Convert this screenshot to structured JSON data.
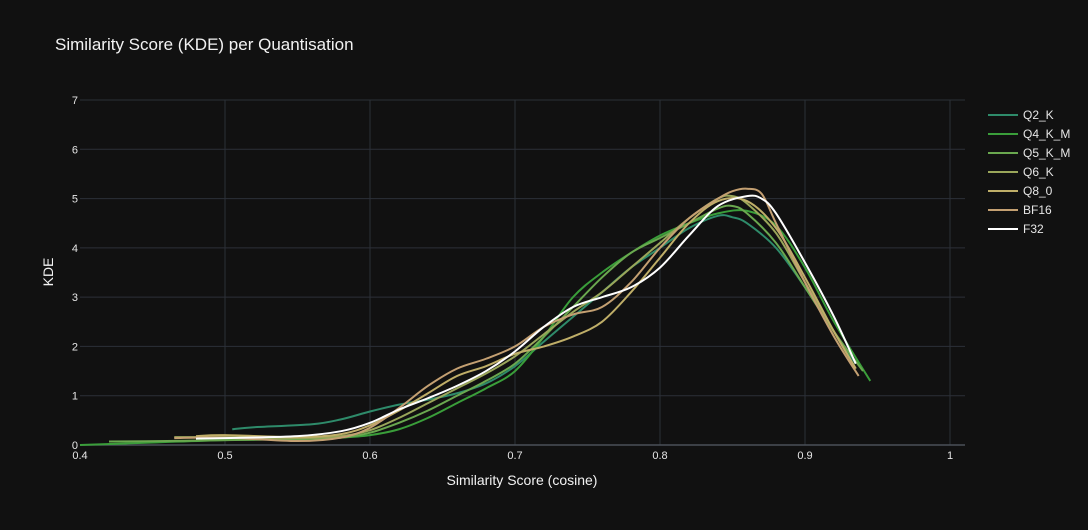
{
  "chart_data": {
    "type": "line",
    "title": "Similarity Score (KDE) per Quantisation",
    "xlabel": "Similarity Score (cosine)",
    "ylabel": "KDE",
    "xlim": [
      0.4,
      1.0
    ],
    "ylim": [
      0,
      7
    ],
    "x_ticks": [
      "0.4",
      "0.5",
      "0.6",
      "0.7",
      "0.8",
      "0.9",
      "1"
    ],
    "y_ticks": [
      "0",
      "1",
      "2",
      "3",
      "4",
      "5",
      "6",
      "7"
    ],
    "grid": true,
    "legend_position": "top-right",
    "series": [
      {
        "name": "Q2_K",
        "color": "#2e8b6a",
        "x": [
          0.505,
          0.52,
          0.56,
          0.58,
          0.6,
          0.62,
          0.64,
          0.66,
          0.68,
          0.7,
          0.72,
          0.74,
          0.76,
          0.78,
          0.8,
          0.82,
          0.84,
          0.85,
          0.86,
          0.88,
          0.9,
          0.92,
          0.935
        ],
        "y": [
          0.32,
          0.36,
          0.42,
          0.52,
          0.68,
          0.82,
          0.92,
          1.05,
          1.25,
          1.6,
          2.1,
          2.6,
          3.1,
          3.6,
          4.0,
          4.4,
          4.65,
          4.62,
          4.5,
          4.0,
          3.2,
          2.3,
          1.65
        ]
      },
      {
        "name": "Q4_K_M",
        "color": "#3a9e3a",
        "x": [
          0.4,
          0.45,
          0.5,
          0.55,
          0.58,
          0.6,
          0.62,
          0.64,
          0.66,
          0.68,
          0.7,
          0.72,
          0.74,
          0.76,
          0.78,
          0.8,
          0.82,
          0.84,
          0.86,
          0.88,
          0.9,
          0.92,
          0.945
        ],
        "y": [
          0.0,
          0.05,
          0.1,
          0.12,
          0.15,
          0.2,
          0.32,
          0.55,
          0.85,
          1.15,
          1.5,
          2.2,
          3.0,
          3.5,
          3.9,
          4.25,
          4.5,
          4.7,
          4.75,
          4.45,
          3.6,
          2.5,
          1.3
        ]
      },
      {
        "name": "Q5_K_M",
        "color": "#6aa84f",
        "x": [
          0.42,
          0.46,
          0.5,
          0.55,
          0.58,
          0.6,
          0.62,
          0.64,
          0.66,
          0.68,
          0.7,
          0.72,
          0.74,
          0.76,
          0.78,
          0.8,
          0.82,
          0.84,
          0.85,
          0.86,
          0.88,
          0.9,
          0.92,
          0.94
        ],
        "y": [
          0.07,
          0.08,
          0.1,
          0.12,
          0.15,
          0.25,
          0.45,
          0.7,
          1.0,
          1.3,
          1.65,
          2.2,
          2.8,
          3.4,
          3.9,
          4.2,
          4.5,
          4.8,
          4.85,
          4.7,
          4.1,
          3.2,
          2.3,
          1.5
        ]
      },
      {
        "name": "Q6_K",
        "color": "#9aa65a",
        "x": [
          0.465,
          0.5,
          0.55,
          0.58,
          0.6,
          0.62,
          0.64,
          0.66,
          0.68,
          0.7,
          0.72,
          0.74,
          0.76,
          0.78,
          0.8,
          0.82,
          0.84,
          0.85,
          0.86,
          0.88,
          0.9,
          0.92,
          0.935
        ],
        "y": [
          0.16,
          0.16,
          0.14,
          0.18,
          0.3,
          0.55,
          0.85,
          1.15,
          1.45,
          1.8,
          2.25,
          2.7,
          3.1,
          3.6,
          4.1,
          4.6,
          5.0,
          5.05,
          4.9,
          4.3,
          3.3,
          2.3,
          1.55
        ]
      },
      {
        "name": "Q8_0",
        "color": "#bfae68",
        "x": [
          0.48,
          0.5,
          0.55,
          0.58,
          0.6,
          0.62,
          0.64,
          0.66,
          0.68,
          0.7,
          0.72,
          0.74,
          0.76,
          0.78,
          0.8,
          0.82,
          0.84,
          0.86,
          0.88,
          0.9,
          0.92,
          0.935
        ],
        "y": [
          0.18,
          0.2,
          0.16,
          0.22,
          0.4,
          0.7,
          1.05,
          1.4,
          1.6,
          1.85,
          2.0,
          2.2,
          2.5,
          3.1,
          3.8,
          4.5,
          4.95,
          4.95,
          4.4,
          3.4,
          2.3,
          1.55
        ]
      },
      {
        "name": "BF16",
        "color": "#c4a072",
        "x": [
          0.465,
          0.5,
          0.55,
          0.58,
          0.6,
          0.62,
          0.64,
          0.66,
          0.68,
          0.7,
          0.72,
          0.74,
          0.76,
          0.78,
          0.8,
          0.82,
          0.84,
          0.85,
          0.86,
          0.87,
          0.88,
          0.9,
          0.92,
          0.937
        ],
        "y": [
          0.14,
          0.15,
          0.08,
          0.15,
          0.35,
          0.75,
          1.2,
          1.55,
          1.75,
          2.0,
          2.4,
          2.65,
          2.8,
          3.3,
          4.0,
          4.6,
          5.0,
          5.15,
          5.2,
          5.1,
          4.5,
          3.3,
          2.2,
          1.4
        ]
      },
      {
        "name": "F32",
        "color": "#ffffff",
        "x": [
          0.48,
          0.5,
          0.55,
          0.58,
          0.6,
          0.62,
          0.64,
          0.66,
          0.68,
          0.7,
          0.72,
          0.74,
          0.76,
          0.78,
          0.8,
          0.82,
          0.84,
          0.86,
          0.87,
          0.88,
          0.9,
          0.92,
          0.935
        ],
        "y": [
          0.13,
          0.14,
          0.18,
          0.28,
          0.45,
          0.72,
          0.95,
          1.2,
          1.5,
          1.9,
          2.4,
          2.8,
          3.0,
          3.2,
          3.6,
          4.25,
          4.85,
          5.05,
          5.0,
          4.7,
          3.7,
          2.6,
          1.65
        ]
      }
    ]
  }
}
